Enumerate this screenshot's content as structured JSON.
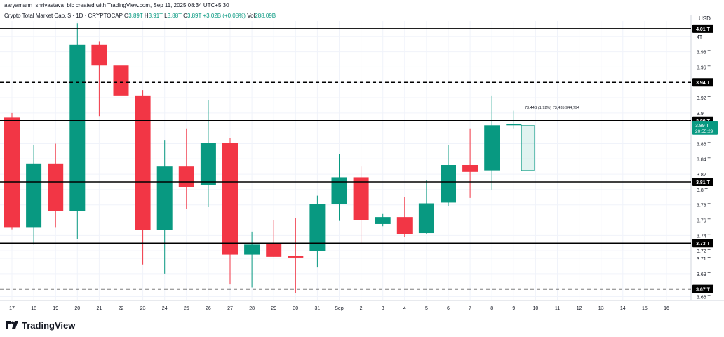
{
  "header": {
    "credit": "aaryamann_shrivastava_bic created with TradingView.com, Sep 11, 2025 08:34 UTC+5:30",
    "symbol": "Crypto Total Market Cap, $ · 1D · CRYPTOCAP",
    "open_label": "O",
    "open_value": "3.89T",
    "high_label": "H",
    "high_value": "3.91T",
    "low_label": "L",
    "low_value": "3.88T",
    "close_label": "C",
    "close_value": "3.89T",
    "change_value": "+3.02B (+0.08%)",
    "vol_label": "Vol",
    "vol_value": "288.09B",
    "currency": "USD"
  },
  "brand": {
    "name": "TradingView",
    "logo_icon": "tradingview-logo-icon"
  },
  "colors": {
    "up": "#089981",
    "down": "#f23645",
    "text": "#131722",
    "grid": "#f0f3fa"
  },
  "chart_data": {
    "type": "candlestick",
    "x_categories": [
      "17",
      "18",
      "19",
      "20",
      "21",
      "22",
      "23",
      "24",
      "25",
      "26",
      "27",
      "28",
      "29",
      "30",
      "31",
      "Sep",
      "2",
      "3",
      "4",
      "5",
      "6",
      "7",
      "8",
      "9",
      "10",
      "11",
      "12",
      "13",
      "14",
      "15",
      "16"
    ],
    "y_ticks": [
      "4T",
      "3.98 T",
      "3.96 T",
      "3.94 T",
      "3.92 T",
      "3.9 T",
      "3.88 T",
      "3.86 T",
      "3.84 T",
      "3.82 T",
      "3.8 T",
      "3.78 T",
      "3.76 T",
      "3.74 T",
      "3.72 T",
      "3.71 T",
      "3.69 T",
      "3.66 T"
    ],
    "y_tick_values": [
      4.0,
      3.98,
      3.96,
      3.94,
      3.92,
      3.9,
      3.88,
      3.86,
      3.84,
      3.82,
      3.8,
      3.78,
      3.76,
      3.74,
      3.72,
      3.71,
      3.69,
      3.66
    ],
    "ylim": [
      3.655,
      4.02
    ],
    "candles": [
      {
        "x": "16",
        "open": 3.925,
        "high": 3.975,
        "low": 3.905,
        "close": 3.935
      },
      {
        "x": "17",
        "open": 3.935,
        "high": 3.938,
        "low": 3.826,
        "close": 3.894
      },
      {
        "x": "18",
        "open": 3.894,
        "high": 3.9,
        "low": 3.748,
        "close": 3.75
      },
      {
        "x": "19",
        "open": 3.75,
        "high": 3.858,
        "low": 3.728,
        "close": 3.834
      },
      {
        "x": "20",
        "open": 3.834,
        "high": 3.86,
        "low": 3.75,
        "close": 3.772
      },
      {
        "x": "21",
        "open": 3.772,
        "high": 4.017,
        "low": 3.735,
        "close": 3.989
      },
      {
        "x": "22",
        "open": 3.989,
        "high": 3.993,
        "low": 3.896,
        "close": 3.962
      },
      {
        "x": "23",
        "open": 3.962,
        "high": 3.983,
        "low": 3.852,
        "close": 3.922
      },
      {
        "x": "24",
        "open": 3.922,
        "high": 3.93,
        "low": 3.702,
        "close": 3.747
      },
      {
        "x": "25",
        "open": 3.747,
        "high": 3.864,
        "low": 3.69,
        "close": 3.83
      },
      {
        "x": "26",
        "open": 3.83,
        "high": 3.879,
        "low": 3.775,
        "close": 3.803
      },
      {
        "x": "27",
        "open": 3.806,
        "high": 3.917,
        "low": 3.777,
        "close": 3.861
      },
      {
        "x": "28",
        "open": 3.861,
        "high": 3.867,
        "low": 3.676,
        "close": 3.715
      },
      {
        "x": "29",
        "open": 3.715,
        "high": 3.745,
        "low": 3.672,
        "close": 3.728
      },
      {
        "x": "30",
        "open": 3.73,
        "high": 3.76,
        "low": 3.712,
        "close": 3.712
      },
      {
        "x": "31",
        "open": 3.713,
        "high": 3.763,
        "low": 3.665,
        "close": 3.711
      },
      {
        "x": "Sep",
        "open": 3.72,
        "high": 3.792,
        "low": 3.698,
        "close": 3.781
      },
      {
        "x": "2",
        "open": 3.781,
        "high": 3.846,
        "low": 3.759,
        "close": 3.816
      },
      {
        "x": "3",
        "open": 3.816,
        "high": 3.83,
        "low": 3.73,
        "close": 3.76
      },
      {
        "x": "4",
        "open": 3.755,
        "high": 3.768,
        "low": 3.752,
        "close": 3.764
      },
      {
        "x": "5",
        "open": 3.764,
        "high": 3.79,
        "low": 3.738,
        "close": 3.742
      },
      {
        "x": "6",
        "open": 3.743,
        "high": 3.812,
        "low": 3.742,
        "close": 3.782
      },
      {
        "x": "7",
        "open": 3.783,
        "high": 3.858,
        "low": 3.778,
        "close": 3.832
      },
      {
        "x": "8",
        "open": 3.832,
        "high": 3.879,
        "low": 3.789,
        "close": 3.823
      },
      {
        "x": "9",
        "open": 3.825,
        "high": 3.922,
        "low": 3.8,
        "close": 3.884
      },
      {
        "x": "10",
        "open": 3.884,
        "high": 3.903,
        "low": 3.879,
        "close": 3.886
      }
    ],
    "current_projection": {
      "x": "10",
      "low": 3.825,
      "high": 3.884
    },
    "horizontal_lines": [
      {
        "value": 4.01,
        "label": "4.01 T",
        "style": "solid"
      },
      {
        "value": 3.94,
        "label": "3.94 T",
        "style": "dashed"
      },
      {
        "value": 3.89,
        "label": "3.89 T",
        "style": "solid"
      },
      {
        "value": 3.81,
        "label": "3.81 T",
        "style": "solid"
      },
      {
        "value": 3.73,
        "label": "3.73 T",
        "style": "solid"
      },
      {
        "value": 3.67,
        "label": "3.67 T",
        "style": "dashed"
      }
    ],
    "price_tag": {
      "value": 3.89,
      "label": "3.89 T",
      "countdown": "20:55:29"
    },
    "annotation": "73.44B (1.92%) 73,435,944,794"
  }
}
